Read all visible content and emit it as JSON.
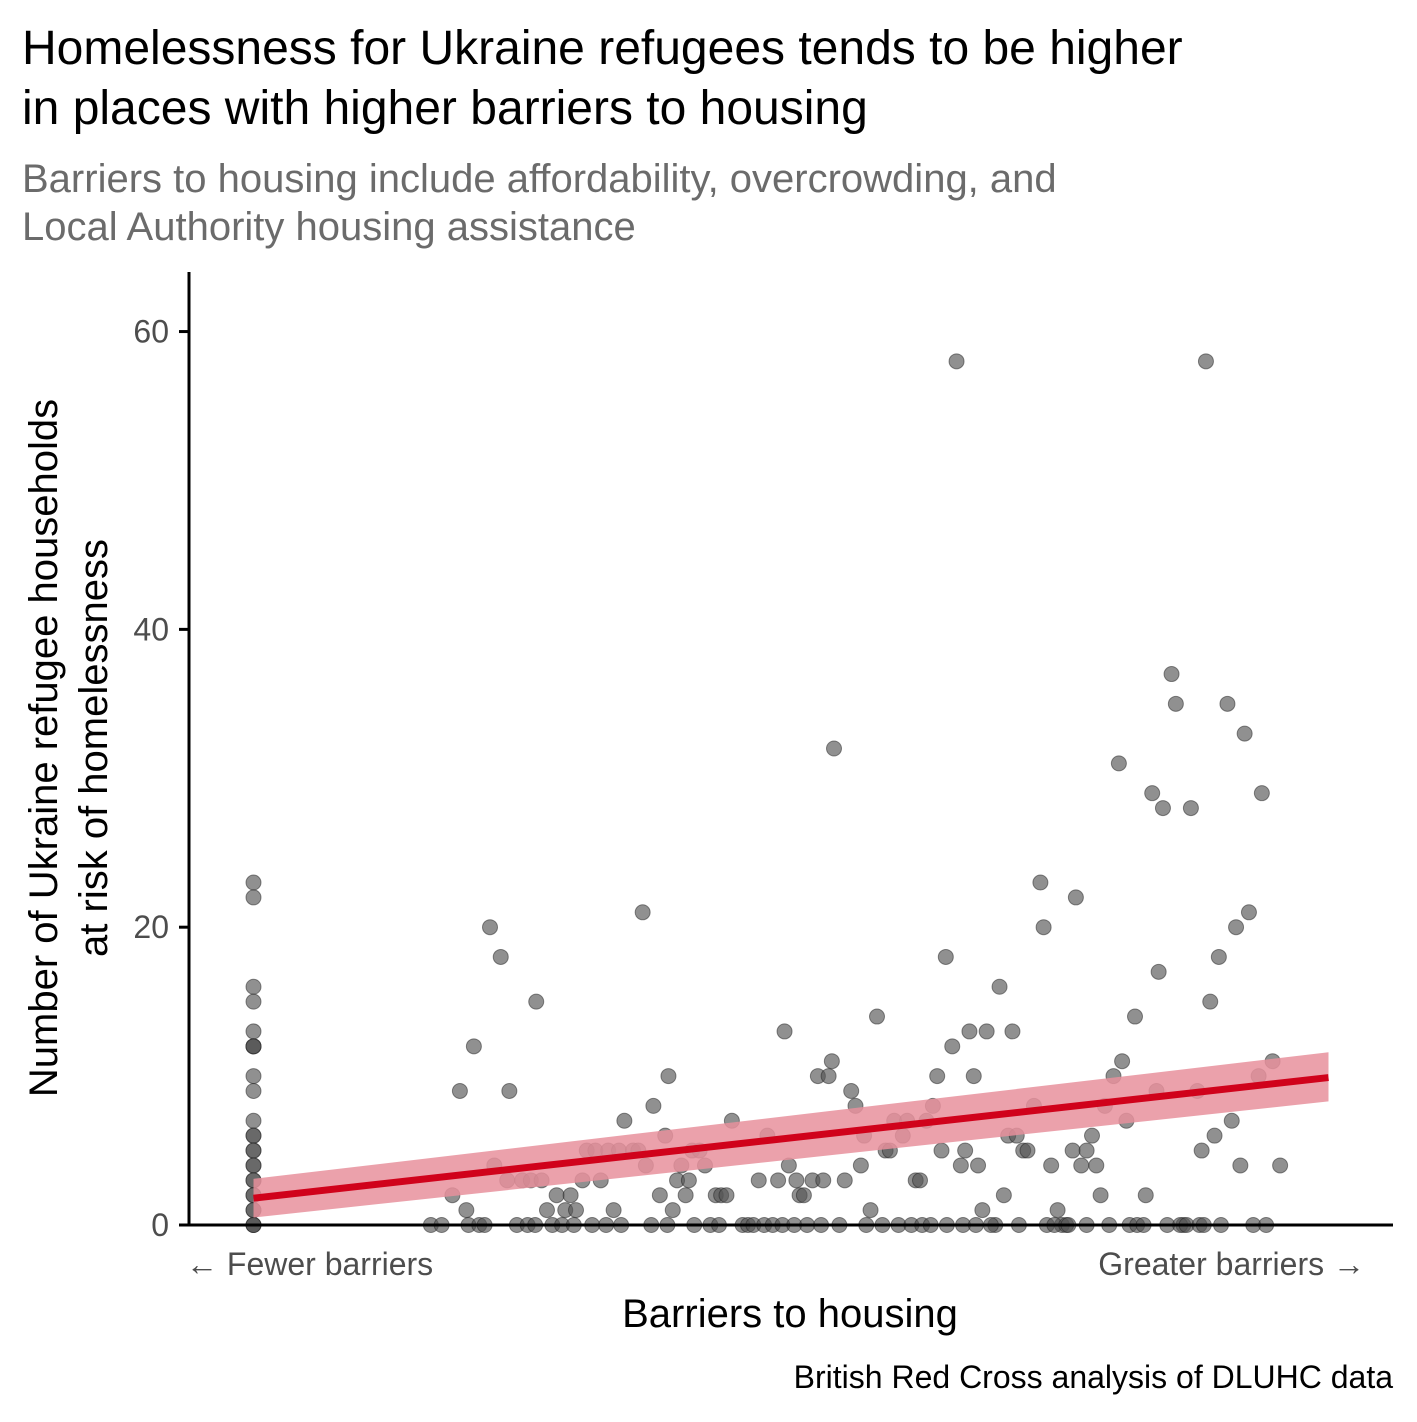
{
  "chart_data": {
    "type": "scatter",
    "title_lines": [
      "Homelessness for Ukraine refugees tends to be higher",
      "in places with higher barriers to housing"
    ],
    "subtitle_lines": [
      "Barriers to housing include affordability, overcrowding, and",
      "Local Authority housing assistance"
    ],
    "xlabel": "Barriers to housing",
    "ylabel_lines": [
      "Number of Ukraine refugee households",
      "at risk of homelessness"
    ],
    "x_tick_labels": {
      "left": "← Fewer barriers",
      "right": "Greater barriers →"
    },
    "caption": "British Red Cross analysis of DLUHC data",
    "xlim": [
      -0.06,
      1.06
    ],
    "ylim": [
      0,
      64
    ],
    "yticks": [
      0,
      20,
      40,
      60
    ],
    "grid": false,
    "colors": {
      "points": "#555555",
      "trend_line": "#D0021B",
      "confidence_band": "#E8919C",
      "subtitle": "#6B6B6B",
      "axis": "#000000",
      "tick_label": "#4D4D4D"
    },
    "trend": {
      "x": [
        0,
        1
      ],
      "y": [
        1.8,
        9.9
      ],
      "ci_lower": [
        0.5,
        8.3
      ],
      "ci_upper": [
        3.1,
        11.6
      ]
    },
    "points": [
      [
        0,
        23
      ],
      [
        0,
        22
      ],
      [
        0,
        16
      ],
      [
        0,
        15
      ],
      [
        0,
        13
      ],
      [
        0,
        12
      ],
      [
        0,
        12
      ],
      [
        0,
        12
      ],
      [
        0,
        10
      ],
      [
        0,
        9
      ],
      [
        0,
        7
      ],
      [
        0,
        6
      ],
      [
        0,
        6
      ],
      [
        0,
        5
      ],
      [
        0,
        5
      ],
      [
        0,
        4
      ],
      [
        0,
        4
      ],
      [
        0,
        3
      ],
      [
        0,
        3
      ],
      [
        0,
        2
      ],
      [
        0,
        2
      ],
      [
        0,
        1
      ],
      [
        0,
        1
      ],
      [
        0,
        0
      ],
      [
        0,
        0
      ],
      [
        0,
        0
      ],
      [
        0.185,
        2
      ],
      [
        0.192,
        9
      ],
      [
        0.198,
        1
      ],
      [
        0.205,
        12
      ],
      [
        0.22,
        20
      ],
      [
        0.224,
        4
      ],
      [
        0.23,
        18
      ],
      [
        0.236,
        3
      ],
      [
        0.238,
        9
      ],
      [
        0.25,
        3
      ],
      [
        0.258,
        3
      ],
      [
        0.263,
        15
      ],
      [
        0.268,
        3
      ],
      [
        0.273,
        1
      ],
      [
        0.282,
        2
      ],
      [
        0.29,
        1
      ],
      [
        0.295,
        2
      ],
      [
        0.3,
        1
      ],
      [
        0.306,
        3
      ],
      [
        0.31,
        5
      ],
      [
        0.318,
        5
      ],
      [
        0.323,
        3
      ],
      [
        0.33,
        5
      ],
      [
        0.335,
        1
      ],
      [
        0.34,
        5
      ],
      [
        0.345,
        7
      ],
      [
        0.353,
        5
      ],
      [
        0.358,
        5
      ],
      [
        0.362,
        21
      ],
      [
        0.365,
        4
      ],
      [
        0.372,
        8
      ],
      [
        0.378,
        2
      ],
      [
        0.383,
        6
      ],
      [
        0.386,
        10
      ],
      [
        0.39,
        1
      ],
      [
        0.394,
        3
      ],
      [
        0.398,
        4
      ],
      [
        0.402,
        2
      ],
      [
        0.405,
        3
      ],
      [
        0.408,
        5
      ],
      [
        0.415,
        5
      ],
      [
        0.42,
        4
      ],
      [
        0.43,
        2
      ],
      [
        0.435,
        2
      ],
      [
        0.44,
        2
      ],
      [
        0.445,
        7
      ],
      [
        0.47,
        3
      ],
      [
        0.478,
        6
      ],
      [
        0.488,
        3
      ],
      [
        0.494,
        13
      ],
      [
        0.498,
        4
      ],
      [
        0.505,
        3
      ],
      [
        0.508,
        2
      ],
      [
        0.512,
        2
      ],
      [
        0.52,
        3
      ],
      [
        0.525,
        10
      ],
      [
        0.53,
        3
      ],
      [
        0.535,
        10
      ],
      [
        0.538,
        11
      ],
      [
        0.54,
        32
      ],
      [
        0.55,
        3
      ],
      [
        0.556,
        9
      ],
      [
        0.56,
        8
      ],
      [
        0.565,
        4
      ],
      [
        0.568,
        6
      ],
      [
        0.574,
        1
      ],
      [
        0.58,
        14
      ],
      [
        0.588,
        5
      ],
      [
        0.592,
        5
      ],
      [
        0.596,
        7
      ],
      [
        0.604,
        6
      ],
      [
        0.608,
        7
      ],
      [
        0.616,
        3
      ],
      [
        0.62,
        3
      ],
      [
        0.626,
        7
      ],
      [
        0.632,
        8
      ],
      [
        0.636,
        10
      ],
      [
        0.64,
        5
      ],
      [
        0.644,
        18
      ],
      [
        0.65,
        12
      ],
      [
        0.654,
        58
      ],
      [
        0.658,
        4
      ],
      [
        0.662,
        5
      ],
      [
        0.666,
        13
      ],
      [
        0.67,
        10
      ],
      [
        0.674,
        4
      ],
      [
        0.678,
        1
      ],
      [
        0.682,
        13
      ],
      [
        0.69,
        0
      ],
      [
        0.694,
        16
      ],
      [
        0.698,
        2
      ],
      [
        0.702,
        6
      ],
      [
        0.706,
        13
      ],
      [
        0.71,
        6
      ],
      [
        0.716,
        5
      ],
      [
        0.72,
        5
      ],
      [
        0.726,
        8
      ],
      [
        0.732,
        23
      ],
      [
        0.735,
        20
      ],
      [
        0.742,
        4
      ],
      [
        0.748,
        1
      ],
      [
        0.752,
        0
      ],
      [
        0.762,
        5
      ],
      [
        0.765,
        22
      ],
      [
        0.77,
        4
      ],
      [
        0.775,
        5
      ],
      [
        0.78,
        6
      ],
      [
        0.784,
        4
      ],
      [
        0.788,
        2
      ],
      [
        0.792,
        8
      ],
      [
        0.8,
        10
      ],
      [
        0.805,
        31
      ],
      [
        0.808,
        11
      ],
      [
        0.812,
        7
      ],
      [
        0.82,
        14
      ],
      [
        0.83,
        2
      ],
      [
        0.836,
        29
      ],
      [
        0.84,
        9
      ],
      [
        0.842,
        17
      ],
      [
        0.846,
        28
      ],
      [
        0.854,
        37
      ],
      [
        0.858,
        35
      ],
      [
        0.865,
        0
      ],
      [
        0.872,
        28
      ],
      [
        0.878,
        9
      ],
      [
        0.882,
        5
      ],
      [
        0.886,
        58
      ],
      [
        0.89,
        15
      ],
      [
        0.894,
        6
      ],
      [
        0.898,
        18
      ],
      [
        0.906,
        35
      ],
      [
        0.91,
        7
      ],
      [
        0.914,
        20
      ],
      [
        0.918,
        4
      ],
      [
        0.922,
        33
      ],
      [
        0.926,
        21
      ],
      [
        0.935,
        10
      ],
      [
        0.938,
        29
      ],
      [
        0.948,
        11
      ],
      [
        0.955,
        4
      ],
      [
        0.165,
        0
      ],
      [
        0.175,
        0
      ],
      [
        0.2,
        0
      ],
      [
        0.21,
        0
      ],
      [
        0.215,
        0
      ],
      [
        0.245,
        0
      ],
      [
        0.255,
        0
      ],
      [
        0.262,
        0
      ],
      [
        0.278,
        0
      ],
      [
        0.287,
        0
      ],
      [
        0.298,
        0
      ],
      [
        0.315,
        0
      ],
      [
        0.328,
        0
      ],
      [
        0.342,
        0
      ],
      [
        0.37,
        0
      ],
      [
        0.385,
        0
      ],
      [
        0.41,
        0
      ],
      [
        0.425,
        0
      ],
      [
        0.433,
        0
      ],
      [
        0.455,
        0
      ],
      [
        0.46,
        0
      ],
      [
        0.465,
        0
      ],
      [
        0.475,
        0
      ],
      [
        0.483,
        0
      ],
      [
        0.492,
        0
      ],
      [
        0.503,
        0
      ],
      [
        0.515,
        0
      ],
      [
        0.528,
        0
      ],
      [
        0.545,
        0
      ],
      [
        0.57,
        0
      ],
      [
        0.585,
        0
      ],
      [
        0.6,
        0
      ],
      [
        0.612,
        0
      ],
      [
        0.622,
        0
      ],
      [
        0.63,
        0
      ],
      [
        0.645,
        0
      ],
      [
        0.66,
        0
      ],
      [
        0.672,
        0
      ],
      [
        0.686,
        0
      ],
      [
        0.712,
        0
      ],
      [
        0.738,
        0
      ],
      [
        0.745,
        0
      ],
      [
        0.756,
        0
      ],
      [
        0.758,
        0
      ],
      [
        0.775,
        0
      ],
      [
        0.796,
        0
      ],
      [
        0.815,
        0
      ],
      [
        0.822,
        0
      ],
      [
        0.828,
        0
      ],
      [
        0.85,
        0
      ],
      [
        0.862,
        0
      ],
      [
        0.868,
        0
      ],
      [
        0.88,
        0
      ],
      [
        0.884,
        0
      ],
      [
        0.9,
        0
      ],
      [
        0.93,
        0
      ],
      [
        0.942,
        0
      ]
    ]
  }
}
